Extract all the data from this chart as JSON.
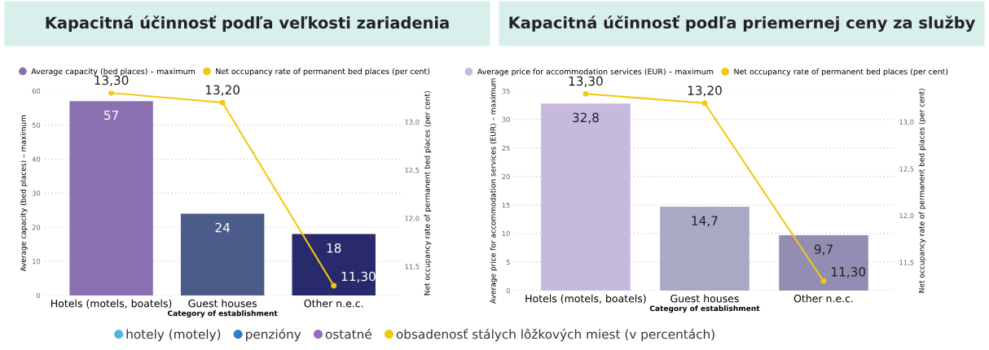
{
  "chart_data": [
    {
      "type": "bar",
      "title": "Kapacitná účinnosť podľa veľkosti zariadenia",
      "xlabel": "Category of establishment",
      "ylabel": "Average capacity (bed places) – maximum",
      "y2label": "Net occupancy rate of permanent bed places (per cent)",
      "categories": [
        "Hotels (motels, boatels)",
        "Guest houses",
        "Other n.e.c."
      ],
      "series": [
        {
          "name": "Average capacity (bed places) – maximum",
          "colors": [
            "#8a70b0",
            "#4b5c8a",
            "#282a6b"
          ],
          "values": [
            57,
            24,
            18
          ],
          "value_labels": [
            "57",
            "24",
            "18"
          ]
        },
        {
          "name": "Net occupancy rate of permanent bed places (per cent)",
          "type": "line",
          "axis": "y2",
          "color": "#f2c811",
          "marker": "circle",
          "values": [
            13.3,
            13.2,
            11.3
          ],
          "value_labels": [
            "13,30",
            "13,20",
            "11,30"
          ]
        }
      ],
      "ylim": [
        0,
        60
      ],
      "yticks": [
        0,
        10,
        20,
        30,
        40,
        50,
        60
      ],
      "y2lim": [
        11.2,
        13.32
      ],
      "y2ticks": [
        {
          "value": 11.5,
          "label": "11,5"
        },
        {
          "value": 12.0,
          "label": "12,0"
        },
        {
          "value": 12.5,
          "label": "12,5"
        },
        {
          "value": 13.0,
          "label": "13,0"
        }
      ],
      "grid": "y",
      "legend": "top",
      "annotations": [
        "hotely (motely)",
        "penzióny",
        "ostatné",
        "obsadenosť stálych lôžkových miest (v percentách)"
      ]
    },
    {
      "type": "bar",
      "title": "Kapacitná účinnosť podľa priemernej ceny za služby",
      "xlabel": "Category of establishment",
      "ylabel": "Average price for accommodation services (EUR) – maximum",
      "y2label": "Net occupancy rate of permanent bed places (per cent)",
      "categories": [
        "Hotels (motels, boatels)",
        "Guest houses",
        "Other n.e.c."
      ],
      "series": [
        {
          "name": "Average price for accommodation services (EUR) – maximum",
          "colors": [
            "#c5bade",
            "#a8aac3",
            "#948db3"
          ],
          "values": [
            32.8,
            14.7,
            9.7
          ],
          "value_labels": [
            "32,8",
            "14,7",
            "9,7"
          ]
        },
        {
          "name": "Net occupancy rate of permanent bed places (per cent)",
          "type": "line",
          "axis": "y2",
          "color": "#f2c811",
          "marker": "circle",
          "values": [
            13.3,
            13.2,
            11.3
          ],
          "value_labels": [
            "13,30",
            "13,20",
            "11,30"
          ]
        }
      ],
      "ylim": [
        0,
        35
      ],
      "yticks": [
        0,
        5,
        10,
        15,
        20,
        25,
        30,
        35
      ],
      "y2lim": [
        11.2,
        13.33
      ],
      "y2ticks": [
        {
          "value": 11.5,
          "label": "11,5"
        },
        {
          "value": 12.0,
          "label": "12,0"
        },
        {
          "value": 12.5,
          "label": "12,5"
        },
        {
          "value": 13.0,
          "label": "13,0"
        }
      ],
      "grid": "y",
      "legend": "top"
    }
  ]
}
